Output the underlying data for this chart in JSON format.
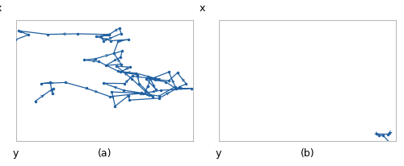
{
  "line_color": "#2060a0",
  "dot_color": "#2060a0",
  "line_width": 0.9,
  "marker_size": 2.5,
  "xlabel": "y",
  "ylabel": "x",
  "label_a": "(a)",
  "label_b": "(b)",
  "fig_width": 5.0,
  "fig_height": 2.06,
  "dpi": 100,
  "label_fontsize": 9,
  "spine_color": "#bbbbbb",
  "rw_seed": 12,
  "levy_seed": 99,
  "rw_steps": 75,
  "levy_steps": 55
}
